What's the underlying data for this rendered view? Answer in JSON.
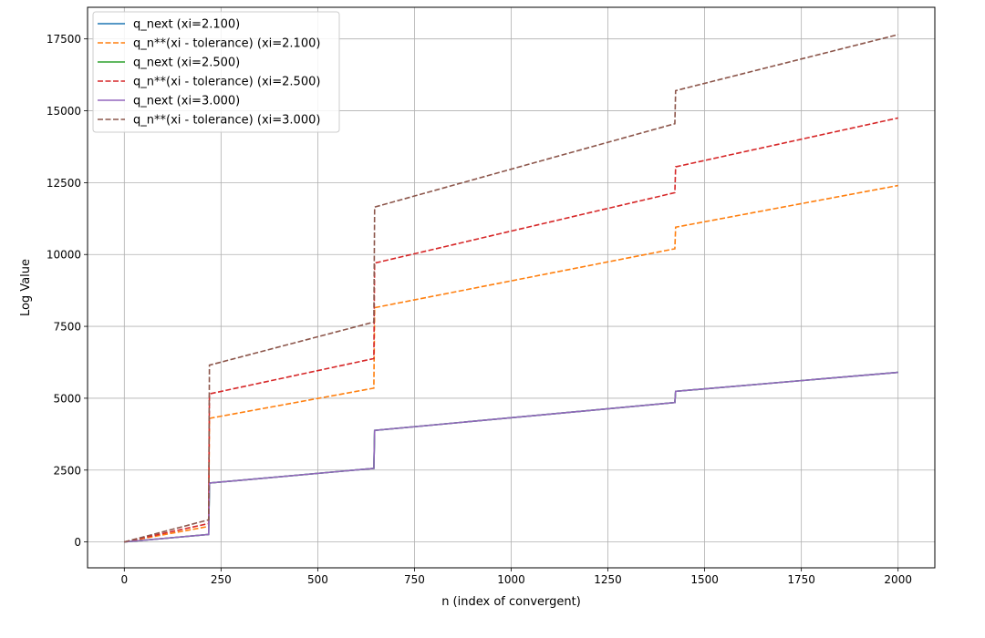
{
  "chart_data": {
    "type": "line",
    "title": "",
    "xlabel": "n (index of convergent)",
    "ylabel": "Log Value",
    "xlim": [
      -95,
      2095
    ],
    "ylim": [
      -900,
      18600
    ],
    "xticks": [
      0,
      250,
      500,
      750,
      1000,
      1250,
      1500,
      1750,
      2000
    ],
    "yticks": [
      0,
      2500,
      5000,
      7500,
      10000,
      12500,
      15000,
      17500
    ],
    "grid": true,
    "legend_position": "top-left",
    "series": [
      {
        "name": "q_next (xi=2.100)",
        "color": "#1f77b4",
        "style": "solid",
        "points": [
          [
            0,
            0
          ],
          [
            218,
            260
          ],
          [
            220,
            2050
          ],
          [
            645,
            2560
          ],
          [
            647,
            3880
          ],
          [
            1423,
            4850
          ],
          [
            1425,
            5240
          ],
          [
            2000,
            5900
          ]
        ]
      },
      {
        "name": "q_n**(xi - tolerance) (xi=2.100)",
        "color": "#ff7f0e",
        "style": "dashed",
        "points": [
          [
            0,
            0
          ],
          [
            218,
            540
          ],
          [
            220,
            4300
          ],
          [
            645,
            5350
          ],
          [
            647,
            8150
          ],
          [
            1423,
            10200
          ],
          [
            1425,
            10950
          ],
          [
            2000,
            12400
          ]
        ]
      },
      {
        "name": "q_next (xi=2.500)",
        "color": "#2ca02c",
        "style": "solid",
        "points": [
          [
            0,
            0
          ],
          [
            218,
            260
          ],
          [
            220,
            2050
          ],
          [
            645,
            2560
          ],
          [
            647,
            3880
          ],
          [
            1423,
            4850
          ],
          [
            1425,
            5240
          ],
          [
            2000,
            5900
          ]
        ]
      },
      {
        "name": "q_n**(xi - tolerance) (xi=2.500)",
        "color": "#d62728",
        "style": "dashed",
        "points": [
          [
            0,
            0
          ],
          [
            218,
            640
          ],
          [
            220,
            5150
          ],
          [
            645,
            6380
          ],
          [
            647,
            9700
          ],
          [
            1423,
            12150
          ],
          [
            1425,
            13050
          ],
          [
            2000,
            14750
          ]
        ]
      },
      {
        "name": "q_next (xi=3.000)",
        "color": "#9467bd",
        "style": "solid",
        "points": [
          [
            0,
            0
          ],
          [
            218,
            260
          ],
          [
            220,
            2050
          ],
          [
            645,
            2560
          ],
          [
            647,
            3880
          ],
          [
            1423,
            4850
          ],
          [
            1425,
            5240
          ],
          [
            2000,
            5900
          ]
        ]
      },
      {
        "name": "q_n**(xi - tolerance) (xi=3.000)",
        "color": "#8c564b",
        "style": "dashed",
        "points": [
          [
            0,
            0
          ],
          [
            218,
            770
          ],
          [
            220,
            6150
          ],
          [
            645,
            7650
          ],
          [
            647,
            11650
          ],
          [
            1423,
            14550
          ],
          [
            1425,
            15700
          ],
          [
            2000,
            17650
          ]
        ]
      }
    ]
  }
}
